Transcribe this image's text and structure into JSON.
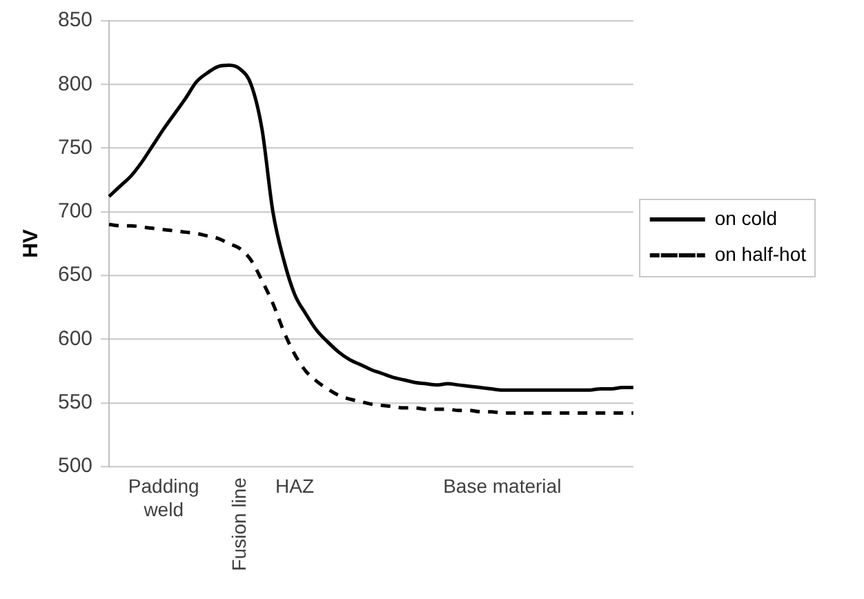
{
  "chart_data": {
    "type": "line",
    "ylabel": "HV",
    "categories": [
      null,
      null,
      null,
      null,
      null,
      "Padding weld",
      null,
      null,
      null,
      null,
      null,
      null,
      "Fusion line",
      null,
      null,
      null,
      null,
      "HAZ",
      null,
      null,
      null,
      null,
      null,
      null,
      null,
      null,
      null,
      null,
      null,
      null,
      null,
      null,
      null,
      null,
      null,
      null,
      "Base material",
      null,
      null,
      null,
      null,
      null,
      null,
      null,
      null,
      null,
      null,
      null,
      null
    ],
    "series": [
      {
        "name": "on cold",
        "color": "#000000",
        "line_style": "solid",
        "values": [
          712,
          720,
          728,
          739,
          752,
          765,
          777,
          789,
          802,
          809,
          814,
          815,
          812,
          800,
          765,
          700,
          662,
          635,
          620,
          607,
          598,
          590,
          584,
          580,
          576,
          573,
          570,
          568,
          566,
          565,
          564,
          565,
          564,
          563,
          562,
          561,
          560,
          560,
          560,
          560,
          560,
          560,
          560,
          560,
          560,
          561,
          561,
          562,
          562
        ]
      },
      {
        "name": "on half-hot",
        "color": "#000000",
        "line_style": "dashed",
        "values": [
          690,
          689,
          689,
          688,
          687,
          686,
          685,
          684,
          683,
          681,
          679,
          675,
          671,
          662,
          646,
          628,
          606,
          588,
          575,
          567,
          561,
          556,
          553,
          551,
          549,
          548,
          547,
          546,
          546,
          545,
          545,
          545,
          544,
          544,
          543,
          543,
          542,
          542,
          542,
          542,
          542,
          542,
          542,
          542,
          542,
          542,
          542,
          542,
          542
        ]
      }
    ],
    "ylim": [
      500,
      850
    ],
    "yticks": [
      500,
      550,
      600,
      650,
      700,
      750,
      800,
      850
    ],
    "grid": "y",
    "legend": "right",
    "marker": "none"
  }
}
